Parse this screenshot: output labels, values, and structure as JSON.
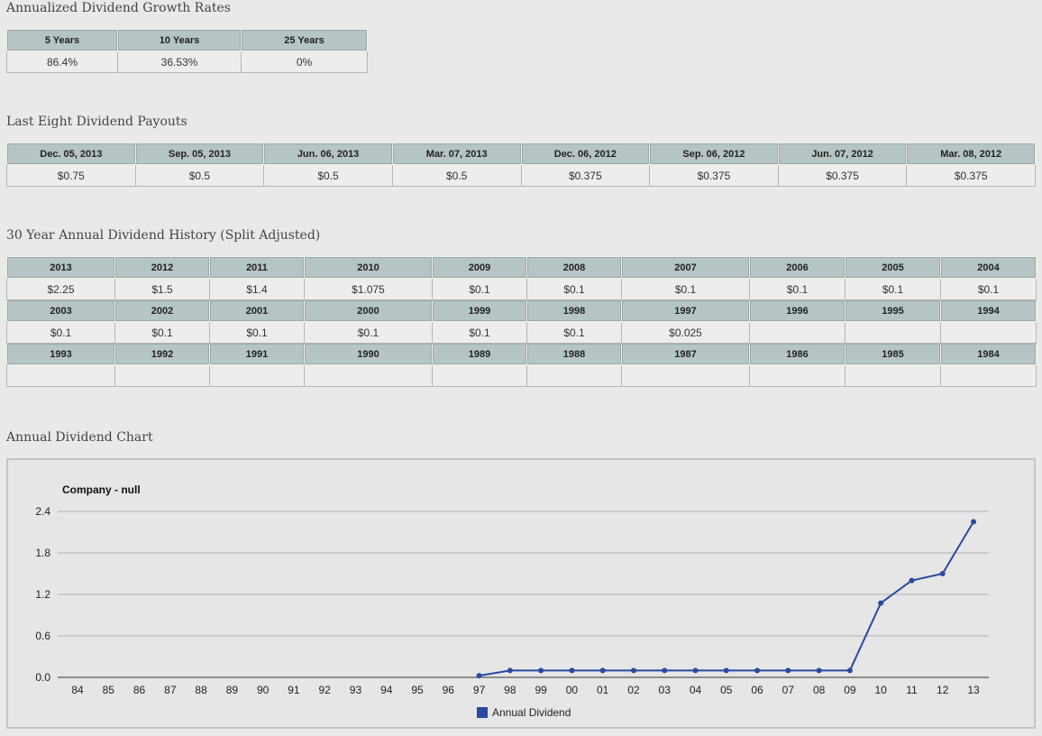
{
  "growth": {
    "title": "Annualized Dividend Growth Rates",
    "headers": [
      "5 Years",
      "10 Years",
      "25 Years"
    ],
    "values": [
      "86.4%",
      "36.53%",
      "0%"
    ]
  },
  "payouts": {
    "title": "Last Eight Dividend Payouts",
    "headers": [
      "Dec. 05, 2013",
      "Sep. 05, 2013",
      "Jun. 06, 2013",
      "Mar. 07, 2013",
      "Dec. 06, 2012",
      "Sep. 06, 2012",
      "Jun. 07, 2012",
      "Mar. 08, 2012"
    ],
    "values": [
      "$0.75",
      "$0.5",
      "$0.5",
      "$0.5",
      "$0.375",
      "$0.375",
      "$0.375",
      "$0.375"
    ]
  },
  "history": {
    "title": "30 Year Annual Dividend History (Split Adjusted)",
    "rows": [
      {
        "years": [
          "2013",
          "2012",
          "2011",
          "2010",
          "2009",
          "2008",
          "2007",
          "2006",
          "2005",
          "2004"
        ],
        "values": [
          "$2.25",
          "$1.5",
          "$1.4",
          "$1.075",
          "$0.1",
          "$0.1",
          "$0.1",
          "$0.1",
          "$0.1",
          "$0.1"
        ]
      },
      {
        "years": [
          "2003",
          "2002",
          "2001",
          "2000",
          "1999",
          "1998",
          "1997",
          "1996",
          "1995",
          "1994"
        ],
        "values": [
          "$0.1",
          "$0.1",
          "$0.1",
          "$0.1",
          "$0.1",
          "$0.1",
          "$0.025",
          "",
          "",
          ""
        ]
      },
      {
        "years": [
          "1993",
          "1992",
          "1991",
          "1990",
          "1989",
          "1988",
          "1987",
          "1986",
          "1985",
          "1984"
        ],
        "values": [
          "",
          "",
          "",
          "",
          "",
          "",
          "",
          "",
          "",
          ""
        ]
      }
    ]
  },
  "chart_section": {
    "title": "Annual Dividend Chart"
  },
  "chart_data": {
    "type": "line",
    "title": "Company - null",
    "categories": [
      "84",
      "85",
      "86",
      "87",
      "88",
      "89",
      "90",
      "91",
      "92",
      "93",
      "94",
      "95",
      "96",
      "97",
      "98",
      "99",
      "00",
      "01",
      "02",
      "03",
      "04",
      "05",
      "06",
      "07",
      "08",
      "09",
      "10",
      "11",
      "12",
      "13"
    ],
    "series": [
      {
        "name": "Annual Dividend",
        "values": [
          null,
          null,
          null,
          null,
          null,
          null,
          null,
          null,
          null,
          null,
          null,
          null,
          null,
          0.025,
          0.1,
          0.1,
          0.1,
          0.1,
          0.1,
          0.1,
          0.1,
          0.1,
          0.1,
          0.1,
          0.1,
          0.1,
          1.075,
          1.4,
          1.5,
          2.25
        ]
      }
    ],
    "yticks": [
      0.0,
      0.6,
      1.2,
      1.8,
      2.4
    ],
    "ytick_labels": [
      "0.0",
      "0.6",
      "1.2",
      "1.8",
      "2.4"
    ],
    "ylim": [
      0,
      2.4
    ],
    "grid": true,
    "legend_position": "bottom",
    "line_color": "#2a4aa0",
    "gridline_color": "#b0b0b0"
  }
}
